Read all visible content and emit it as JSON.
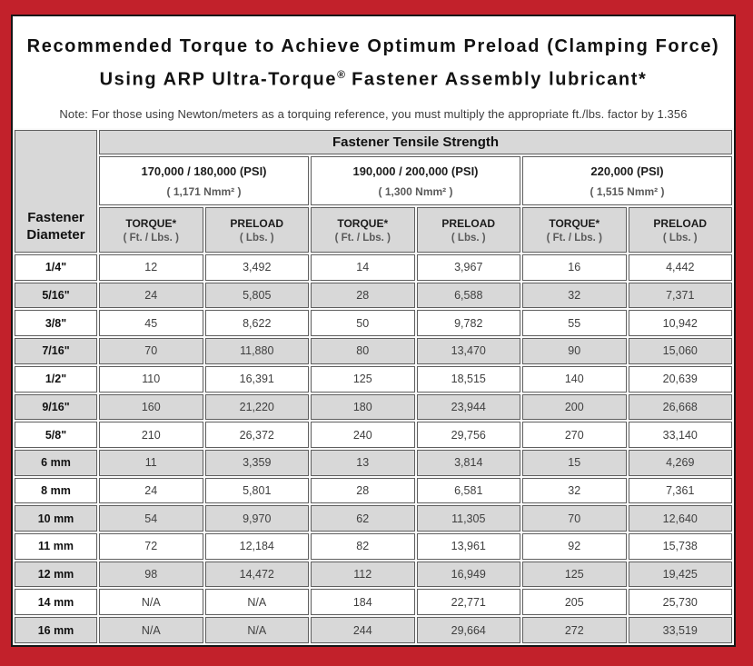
{
  "title": {
    "line1": "Recommended Torque to Achieve Optimum Preload (Clamping Force)",
    "line2_before": "Using ARP Ultra-Torque",
    "line2_reg_mark": "®",
    "line2_after": " Fastener Assembly lubricant*"
  },
  "note": "Note: For those using Newton/meters as a torquing reference, you must multiply the appropriate ft./lbs. factor by 1.356",
  "table": {
    "tensile_header": "Fastener Tensile Strength",
    "diameter_header_line1": "Fastener",
    "diameter_header_line2": "Diameter",
    "groups": [
      {
        "psi": "170,000 / 180,000 (PSI)",
        "nmm": "( 1,171 Nmm² )"
      },
      {
        "psi": "190,000 / 200,000 (PSI)",
        "nmm": "( 1,300 Nmm² )"
      },
      {
        "psi": "220,000 (PSI)",
        "nmm": "( 1,515 Nmm² )"
      }
    ],
    "col_headers": {
      "torque": "TORQUE*",
      "torque_sub": "( Ft. / Lbs. )",
      "preload": "PRELOAD",
      "preload_sub": "( Lbs. )"
    },
    "rows": [
      {
        "diameter": "1/4\"",
        "values": [
          "12",
          "3,492",
          "14",
          "3,967",
          "16",
          "4,442"
        ]
      },
      {
        "diameter": "5/16\"",
        "values": [
          "24",
          "5,805",
          "28",
          "6,588",
          "32",
          "7,371"
        ]
      },
      {
        "diameter": "3/8\"",
        "values": [
          "45",
          "8,622",
          "50",
          "9,782",
          "55",
          "10,942"
        ]
      },
      {
        "diameter": "7/16\"",
        "values": [
          "70",
          "11,880",
          "80",
          "13,470",
          "90",
          "15,060"
        ]
      },
      {
        "diameter": "1/2\"",
        "values": [
          "110",
          "16,391",
          "125",
          "18,515",
          "140",
          "20,639"
        ]
      },
      {
        "diameter": "9/16\"",
        "values": [
          "160",
          "21,220",
          "180",
          "23,944",
          "200",
          "26,668"
        ]
      },
      {
        "diameter": "5/8\"",
        "values": [
          "210",
          "26,372",
          "240",
          "29,756",
          "270",
          "33,140"
        ]
      },
      {
        "diameter": "6 mm",
        "values": [
          "11",
          "3,359",
          "13",
          "3,814",
          "15",
          "4,269"
        ]
      },
      {
        "diameter": "8 mm",
        "values": [
          "24",
          "5,801",
          "28",
          "6,581",
          "32",
          "7,361"
        ]
      },
      {
        "diameter": "10 mm",
        "values": [
          "54",
          "9,970",
          "62",
          "11,305",
          "70",
          "12,640"
        ]
      },
      {
        "diameter": "11 mm",
        "values": [
          "72",
          "12,184",
          "82",
          "13,961",
          "92",
          "15,738"
        ]
      },
      {
        "diameter": "12 mm",
        "values": [
          "98",
          "14,472",
          "112",
          "16,949",
          "125",
          "19,425"
        ]
      },
      {
        "diameter": "14 mm",
        "values": [
          "N/A",
          "N/A",
          "184",
          "22,771",
          "205",
          "25,730"
        ]
      },
      {
        "diameter": "16 mm",
        "values": [
          "N/A",
          "N/A",
          "244",
          "29,664",
          "272",
          "33,519"
        ]
      }
    ]
  },
  "colors": {
    "frame_red": "#c2212b",
    "cell_gray": "#d8d8d8",
    "cell_border": "#5f5f5f",
    "sub_text": "#5a5a5a"
  }
}
